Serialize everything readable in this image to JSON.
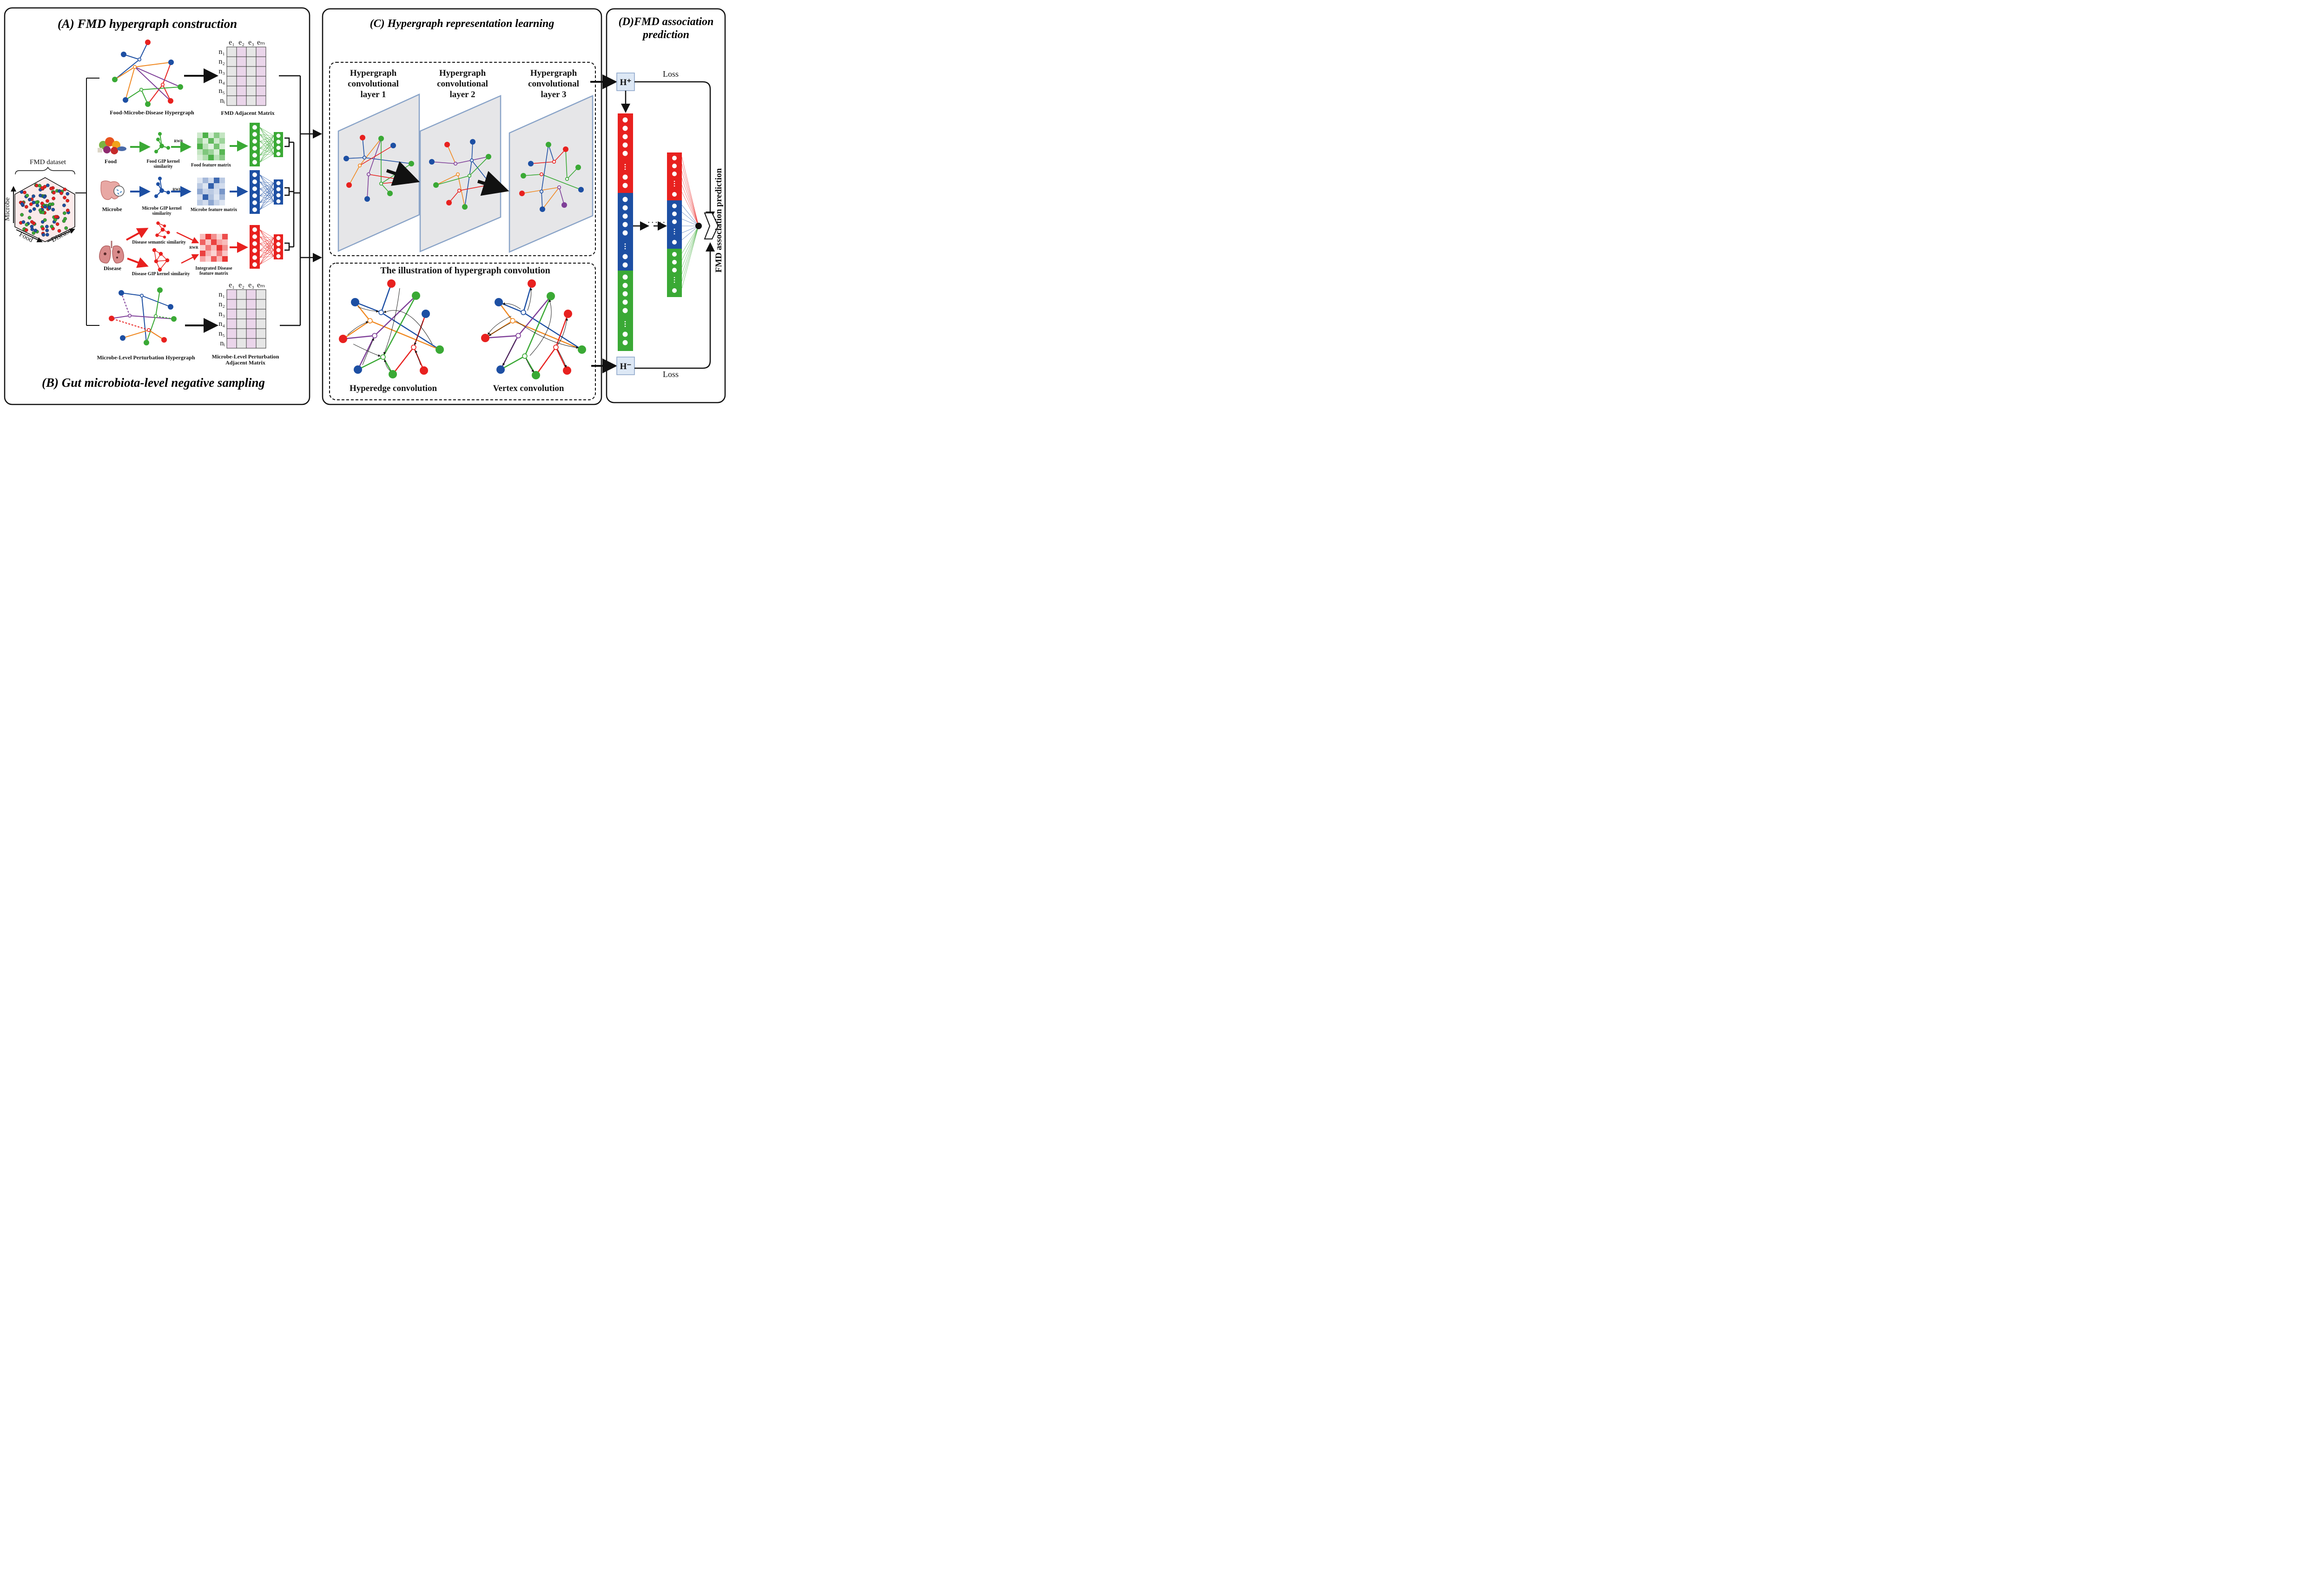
{
  "panels": {
    "a_title": "(A) FMD hypergraph construction",
    "b_title": "(B) Gut microbiota-level negative sampling",
    "c_title": "(C) Hypergraph representation learning",
    "d_title_line1": "(D)FMD association",
    "d_title_line2": "prediction"
  },
  "dataset": {
    "label": "FMD dataset",
    "axis_microbe": "Microbe",
    "axis_food": "Food",
    "axis_disease": "Disease"
  },
  "hypergraph_top": {
    "caption": "Food-Microbe-Disease Hypergraph",
    "matrix_caption": "FMD Adjacent Matrix",
    "col_headers": [
      "e₁",
      "e₂",
      "e₃",
      "eₘ"
    ],
    "row_headers": [
      "n₁",
      "n₂",
      "n₃",
      "n₄",
      "n₅",
      "nᵢ"
    ]
  },
  "hypergraph_bottom": {
    "caption": "Microbe-Level Perturbation Hypergraph",
    "matrix_caption_line1": "Microbe-Level Perturbation",
    "matrix_caption_line2": "Adjacent Matrix",
    "col_headers": [
      "e₁",
      "e₂",
      "e₃",
      "eₘ"
    ],
    "row_headers": [
      "n₁",
      "n₂",
      "n₃",
      "n₄",
      "n₅",
      "nᵢ"
    ]
  },
  "features": {
    "food_label": "Food",
    "food_sim_line1": "Food GIP kernel",
    "food_sim_line2": "similarity",
    "food_matrix": "Food feature matrix",
    "microbe_label": "Microbe",
    "microbe_sim_line1": "Microbe GIP kernel",
    "microbe_sim_line2": "similarity",
    "microbe_matrix": "Microbe feature matrix",
    "disease_label": "Disease",
    "disease_sem_sim": "Disease semantic similarity",
    "disease_gip_sim": "Disease GIP kernel similarity",
    "disease_matrix_line1": "Integrated Disease",
    "disease_matrix_line2": "feature matrix",
    "rwr": "RWR"
  },
  "layers": {
    "l1_line1": "Hypergraph",
    "l1_line2": "convolutional",
    "l1_line3": "layer 1",
    "l2_line1": "Hypergraph",
    "l2_line2": "convolutional",
    "l2_line3": "layer 2",
    "l3_line1": "Hypergraph",
    "l3_line2": "convolutional",
    "l3_line3": "layer 3"
  },
  "convolution": {
    "title": "The illustration of hypergraph convolution",
    "hyperedge": "Hyperedge convolution",
    "vertex": "Vertex convolution"
  },
  "prediction": {
    "h_plus": "H⁺",
    "h_minus": "H⁻",
    "loss_top": "Loss",
    "loss_bottom": "Loss",
    "vertical_label": "FMD association prediction",
    "dots": "· · · · ·"
  },
  "colors": {
    "red": "#e8211f",
    "blue": "#1d4fa3",
    "green": "#3aa935",
    "orange": "#f08a24",
    "purple": "#7f3f98",
    "pink_cell": "#ead5ea",
    "grey_cell": "#e6e6e6"
  }
}
